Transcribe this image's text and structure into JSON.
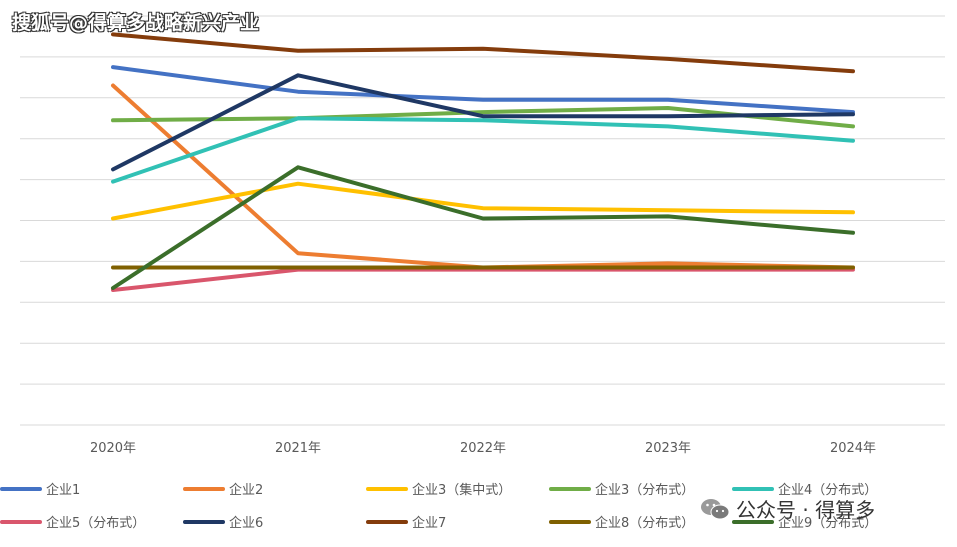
{
  "watermark": {
    "top_text": "搜狐号@得算多战略新兴产业",
    "bottom_text": "公众号 · 得算多"
  },
  "chart_data": {
    "type": "line",
    "title": "",
    "xlabel": "",
    "ylabel": "",
    "ylim": [
      0,
      100
    ],
    "grid": true,
    "legend_position": "bottom",
    "categories": [
      "2020年",
      "2021年",
      "2022年",
      "2023年",
      "2024年"
    ],
    "series": [
      {
        "name": "企业1",
        "color": "#4472C4",
        "values": [
          87.5,
          81.5,
          79.5,
          79.5,
          76.5
        ]
      },
      {
        "name": "企业2",
        "color": "#ED7D31",
        "values": [
          83,
          42,
          38.5,
          39.5,
          38.5
        ]
      },
      {
        "name": "企业3（集中式）",
        "color": "#FFC000",
        "values": [
          50.5,
          59,
          53,
          52.5,
          52
        ]
      },
      {
        "name": "企业3（分布式）",
        "color": "#70AD47",
        "values": [
          74.5,
          75,
          76.5,
          77.5,
          73
        ]
      },
      {
        "name": "企业4（分布式）",
        "color": "#31C1B5",
        "values": [
          59.5,
          75,
          74.5,
          73,
          69.5
        ]
      },
      {
        "name": "企业5（分布式）",
        "color": "#D9566C",
        "values": [
          33,
          38,
          38,
          38,
          38
        ]
      },
      {
        "name": "企业6",
        "color": "#1F3864",
        "values": [
          62.5,
          85.5,
          75.5,
          75.5,
          76
        ]
      },
      {
        "name": "企业7",
        "color": "#843C0C",
        "values": [
          95.5,
          91.5,
          92,
          89.5,
          86.5
        ]
      },
      {
        "name": "企业8（分布式）",
        "color": "#7F6000",
        "values": [
          38.5,
          38.5,
          38.5,
          38.5,
          38.5
        ]
      },
      {
        "name": "企业9（分布式）",
        "color": "#3B6E2A",
        "values": [
          33.5,
          63,
          50.5,
          51,
          47
        ]
      }
    ]
  }
}
